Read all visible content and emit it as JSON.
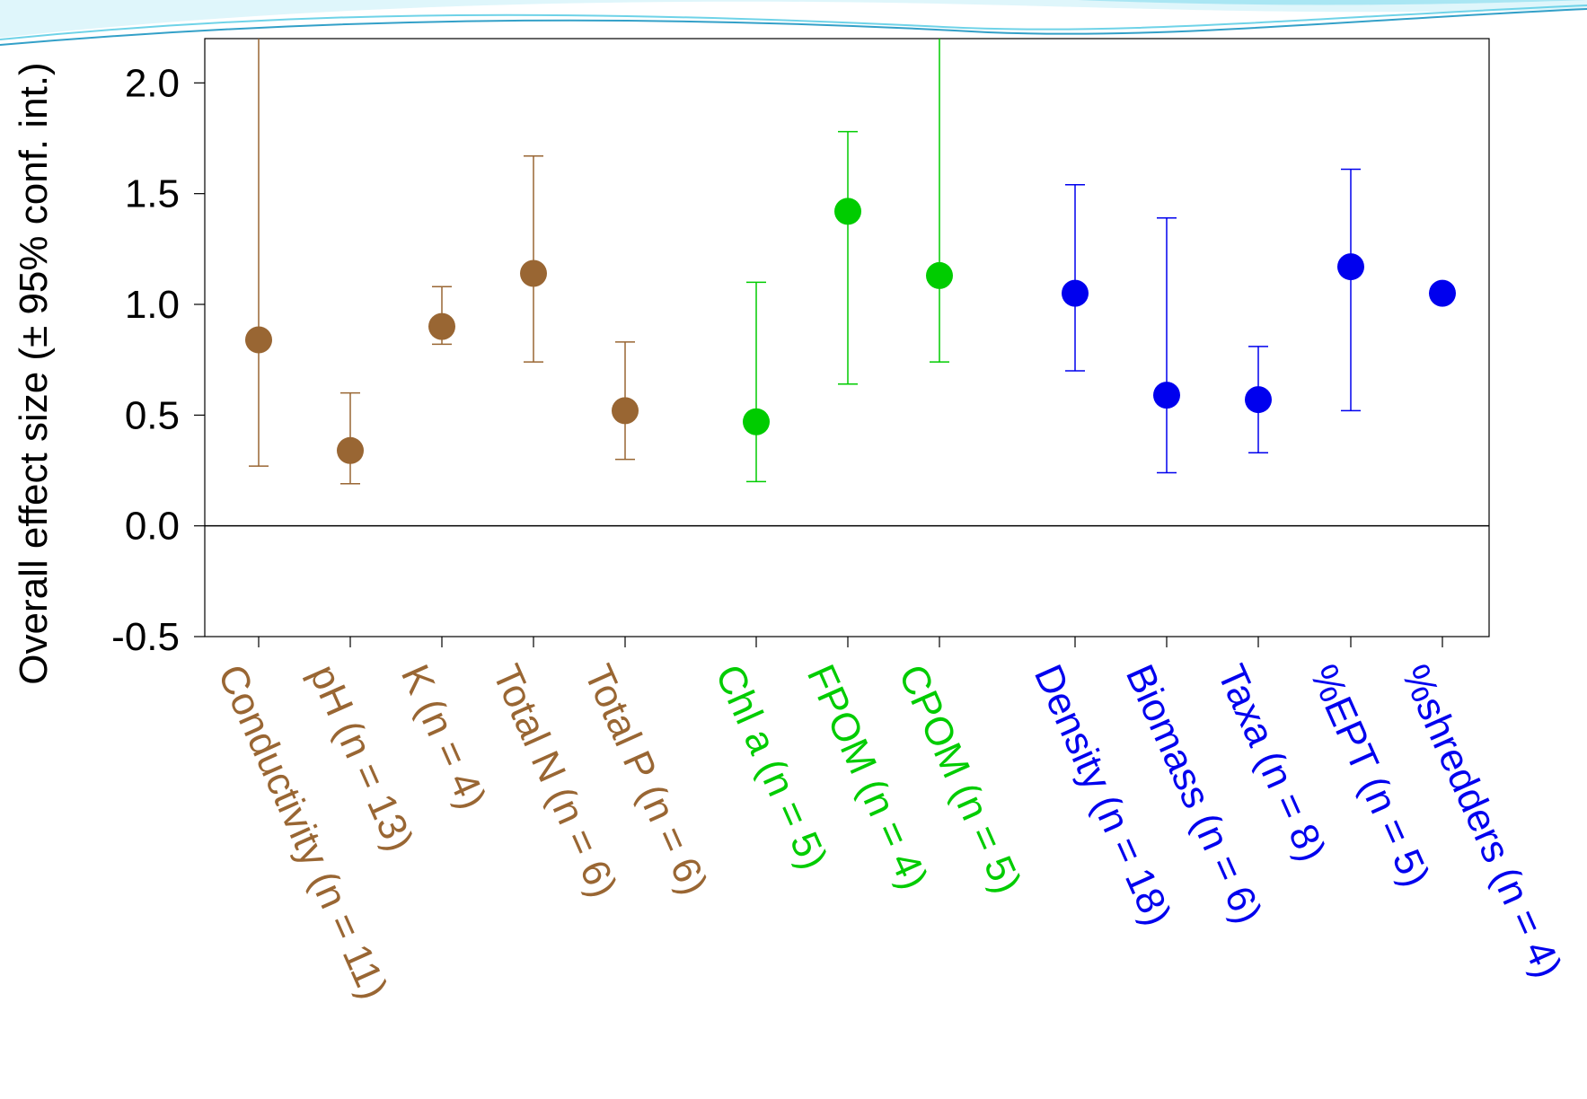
{
  "colors": {
    "physicochemical": "#996633",
    "organic_matter": "#00cc00",
    "invertebrates": "#0000ee",
    "decor": "#6fd3e8"
  },
  "chart_data": {
    "type": "scatter",
    "title": "",
    "xlabel": "",
    "ylabel": "Overall effect size (± 95% conf. int.)",
    "ylim": [
      -0.5,
      2.2
    ],
    "yticks": [
      -0.5,
      0.0,
      0.5,
      1.0,
      1.5,
      2.0
    ],
    "ytick_labels": [
      "-0.5",
      "0.0",
      "0.5",
      "1.0",
      "1.5",
      "2.0"
    ],
    "reference_line_y": 0,
    "grid": false,
    "points": [
      {
        "label": "Conductivity (n = 11)",
        "group": "physicochemical",
        "y": 0.84,
        "ci_low": 0.27,
        "ci_high": 2.2
      },
      {
        "label": "pH (n = 13)",
        "group": "physicochemical",
        "y": 0.34,
        "ci_low": 0.19,
        "ci_high": 0.6
      },
      {
        "label": "K (n = 4)",
        "group": "physicochemical",
        "y": 0.9,
        "ci_low": 0.82,
        "ci_high": 1.08
      },
      {
        "label": "Total N (n = 6)",
        "group": "physicochemical",
        "y": 1.14,
        "ci_low": 0.74,
        "ci_high": 1.67
      },
      {
        "label": "Total P (n = 6)",
        "group": "physicochemical",
        "y": 0.52,
        "ci_low": 0.3,
        "ci_high": 0.83
      },
      {
        "label": "Chl a (n = 5)",
        "group": "organic_matter",
        "y": 0.47,
        "ci_low": 0.2,
        "ci_high": 1.1
      },
      {
        "label": "FPOM (n = 4)",
        "group": "organic_matter",
        "y": 1.42,
        "ci_low": 0.64,
        "ci_high": 1.78
      },
      {
        "label": "CPOM (n = 5)",
        "group": "organic_matter",
        "y": 1.13,
        "ci_low": 0.74,
        "ci_high": 2.2
      },
      {
        "label": "Density (n = 18)",
        "group": "invertebrates",
        "y": 1.05,
        "ci_low": 0.7,
        "ci_high": 1.54
      },
      {
        "label": "Biomass (n = 6)",
        "group": "invertebrates",
        "y": 0.59,
        "ci_low": 0.24,
        "ci_high": 1.39
      },
      {
        "label": "Taxa (n = 8)",
        "group": "invertebrates",
        "y": 0.57,
        "ci_low": 0.33,
        "ci_high": 0.81
      },
      {
        "label": "%EPT (n = 5)",
        "group": "invertebrates",
        "y": 1.17,
        "ci_low": 0.52,
        "ci_high": 1.61
      },
      {
        "label": "%shredders (n = 4)",
        "group": "invertebrates",
        "y": 1.05,
        "ci_low": null,
        "ci_high": null
      }
    ]
  }
}
